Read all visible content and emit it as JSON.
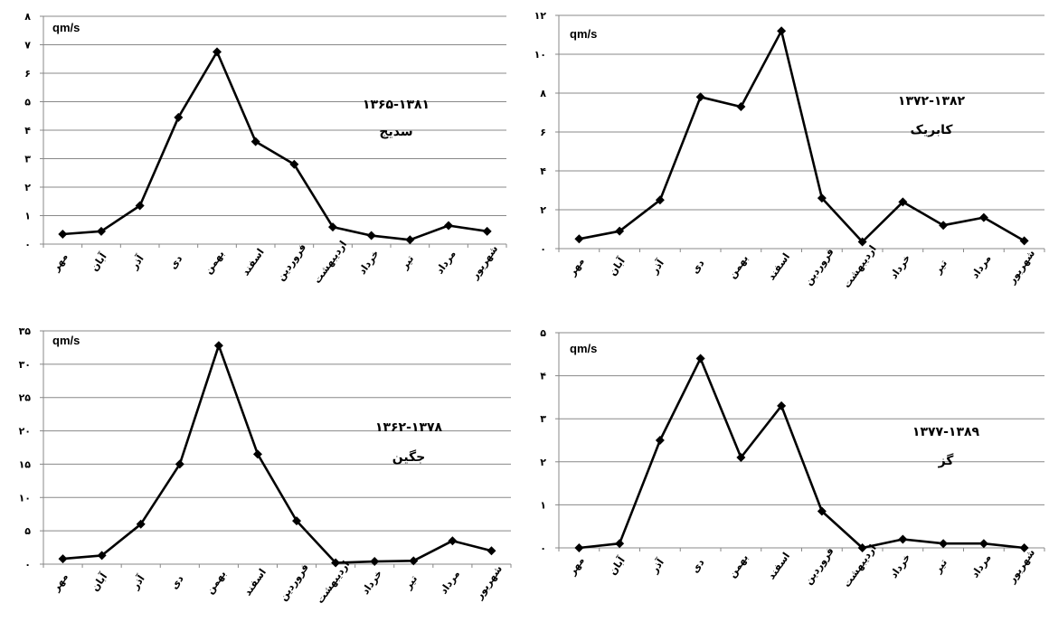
{
  "chart_data": [
    {
      "type": "line",
      "unit_label": "qm/s",
      "period": "۱۳۶۵-۱۳۸۱",
      "station": "سدیج",
      "categories": [
        "مهر",
        "آبان",
        "آذر",
        "دی",
        "بهمن",
        "اسفند",
        "فروردین",
        "اردیبهشت",
        "خرداد",
        "تیر",
        "مرداد",
        "شهریور"
      ],
      "values": [
        0.35,
        0.45,
        1.35,
        4.45,
        6.75,
        3.6,
        2.8,
        0.6,
        0.3,
        0.15,
        0.65,
        0.45
      ],
      "ylim": [
        0,
        8
      ],
      "yticks": [
        0,
        1,
        2,
        3,
        4,
        5,
        6,
        7,
        8
      ],
      "ytick_labels": [
        "۰",
        "۱",
        "۲",
        "۳",
        "۴",
        "۵",
        "۶",
        "۷",
        "۸"
      ],
      "grid": true
    },
    {
      "type": "line",
      "unit_label": "qm/s",
      "period": "۱۳۷۲-۱۳۸۲",
      "station": "کابریک",
      "categories": [
        "مهر",
        "آبان",
        "آذر",
        "دی",
        "بهمن",
        "اسفند",
        "فروردین",
        "اردیبهشت",
        "خرداد",
        "تیر",
        "مرداد",
        "شهریور"
      ],
      "values": [
        0.5,
        0.9,
        2.5,
        7.8,
        7.3,
        11.2,
        2.6,
        0.35,
        2.4,
        1.2,
        1.6,
        0.4
      ],
      "ylim": [
        0,
        12
      ],
      "yticks": [
        0,
        2,
        4,
        6,
        8,
        10,
        12
      ],
      "ytick_labels": [
        "۰",
        "۲",
        "۴",
        "۶",
        "۸",
        "۱۰",
        "۱۲"
      ],
      "grid": true
    },
    {
      "type": "line",
      "unit_label": "qm/s",
      "period": "۱۳۶۲-۱۳۷۸",
      "station": "جگین",
      "categories": [
        "مهر",
        "آبان",
        "آذر",
        "دی",
        "بهمن",
        "اسفند",
        "فروردین",
        "اردیبهشت",
        "خرداد",
        "تیر",
        "مرداد",
        "شهریور"
      ],
      "values": [
        0.8,
        1.3,
        6.0,
        15.0,
        32.8,
        16.5,
        6.5,
        0.2,
        0.4,
        0.5,
        3.5,
        2.0
      ],
      "ylim": [
        0,
        35
      ],
      "yticks": [
        0,
        5,
        10,
        15,
        20,
        25,
        30,
        35
      ],
      "ytick_labels": [
        "۰",
        "۵",
        "۱۰",
        "۱۵",
        "۲۰",
        "۲۵",
        "۳۰",
        "۳۵"
      ],
      "grid": true
    },
    {
      "type": "line",
      "unit_label": "qm/s",
      "period": "۱۳۷۷-۱۳۸۹",
      "station": "گز",
      "categories": [
        "مهر",
        "آبان",
        "آذر",
        "دی",
        "بهمن",
        "اسفند",
        "فروردین",
        "اردیبهشت",
        "خرداد",
        "تیر",
        "مرداد",
        "شهریور"
      ],
      "values": [
        0.0,
        0.1,
        2.5,
        4.4,
        2.1,
        3.3,
        0.85,
        0.0,
        0.2,
        0.1,
        0.1,
        0.0
      ],
      "ylim": [
        0,
        5
      ],
      "yticks": [
        0,
        1,
        2,
        3,
        4,
        5
      ],
      "ytick_labels": [
        "۰",
        "۱",
        "۲",
        "۳",
        "۴",
        "۵"
      ],
      "grid": true
    }
  ],
  "colors": {
    "line": "#000000",
    "grid": "#888888",
    "background": "#ffffff"
  }
}
